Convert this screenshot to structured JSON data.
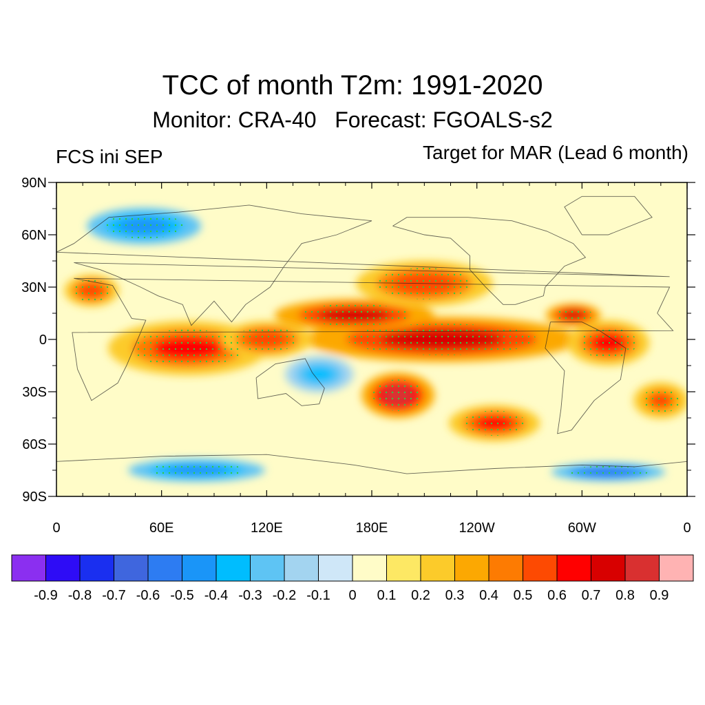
{
  "title": "TCC of month T2m: 1991-2020",
  "subtitle": "Monitor: CRA-40   Forecast: FGOALS-s2",
  "left_label": "FCS ini SEP",
  "right_label": "Target for MAR (Lead 6 month)",
  "chart_data": {
    "type": "heatmap",
    "projection": "cylindrical-equidistant",
    "variable": "TCC of month T2m",
    "period": "1991-2020",
    "x_ticks": [
      "0",
      "60E",
      "120E",
      "180E",
      "120W",
      "60W",
      "0"
    ],
    "x_tick_values": [
      0,
      60,
      120,
      180,
      240,
      300,
      360
    ],
    "y_ticks": [
      "90N",
      "60N",
      "30N",
      "0",
      "30S",
      "60S",
      "90S"
    ],
    "y_tick_values": [
      90,
      60,
      30,
      0,
      -30,
      -60,
      -90
    ],
    "xlim": [
      0,
      360
    ],
    "ylim": [
      -90,
      90
    ],
    "stippling": "significant correlation (green dots)",
    "colorbar": {
      "levels": [
        "-0.9",
        "-0.8",
        "-0.7",
        "-0.6",
        "-0.5",
        "-0.4",
        "-0.3",
        "-0.2",
        "-0.1",
        "0",
        "0.1",
        "0.2",
        "0.3",
        "0.4",
        "0.5",
        "0.6",
        "0.7",
        "0.8",
        "0.9"
      ],
      "colors": [
        "#8b2ff0",
        "#2e0cf6",
        "#1a2ff0",
        "#3f66de",
        "#2d7cf2",
        "#1a95f8",
        "#00bdfe",
        "#5ec4f4",
        "#a3d4f0",
        "#cfe7f8",
        "#fffcc8",
        "#fde864",
        "#fccb2a",
        "#fca802",
        "#fd7b02",
        "#fd4a02",
        "#ff0000",
        "#d80000",
        "#d93030",
        "#ffb3b3"
      ]
    },
    "features": [
      {
        "name": "tropical-pacific",
        "lon": 220,
        "lat": 0,
        "value": 0.75,
        "rx": 60,
        "ry": 10
      },
      {
        "name": "north-pacific-tropics",
        "lon": 170,
        "lat": 14,
        "value": 0.7,
        "rx": 35,
        "ry": 7
      },
      {
        "name": "south-pacific-blob",
        "lon": 195,
        "lat": -32,
        "value": 0.8,
        "rx": 16,
        "ry": 10
      },
      {
        "name": "indian-ocean",
        "lon": 75,
        "lat": -5,
        "value": 0.6,
        "rx": 35,
        "ry": 12
      },
      {
        "name": "maritime-continent",
        "lon": 120,
        "lat": 0,
        "value": 0.55,
        "rx": 20,
        "ry": 8
      },
      {
        "name": "tropical-atlantic",
        "lon": 315,
        "lat": -2,
        "value": 0.65,
        "rx": 18,
        "ry": 10
      },
      {
        "name": "caribbean",
        "lon": 295,
        "lat": 14,
        "value": 0.7,
        "rx": 12,
        "ry": 5
      },
      {
        "name": "east-pacific-south",
        "lon": 250,
        "lat": -48,
        "value": 0.6,
        "rx": 20,
        "ry": 8
      },
      {
        "name": "north-pacific-mid",
        "lon": 210,
        "lat": 32,
        "value": 0.55,
        "rx": 30,
        "ry": 10
      },
      {
        "name": "arabia",
        "lon": 20,
        "lat": 28,
        "value": 0.55,
        "rx": 12,
        "ry": 7
      },
      {
        "name": "south-atlantic",
        "lon": 345,
        "lat": -35,
        "value": 0.5,
        "rx": 12,
        "ry": 8
      },
      {
        "name": "siberia-cool",
        "lon": 50,
        "lat": 65,
        "value": -0.5,
        "rx": 25,
        "ry": 8
      },
      {
        "name": "antarctic-cool-1",
        "lon": 80,
        "lat": -75,
        "value": -0.5,
        "rx": 30,
        "ry": 5
      },
      {
        "name": "antarctic-cool-2",
        "lon": 315,
        "lat": -76,
        "value": -0.6,
        "rx": 25,
        "ry": 4
      },
      {
        "name": "south-pacific-cool",
        "lon": 150,
        "lat": -20,
        "value": -0.3,
        "rx": 15,
        "ry": 8
      }
    ]
  }
}
